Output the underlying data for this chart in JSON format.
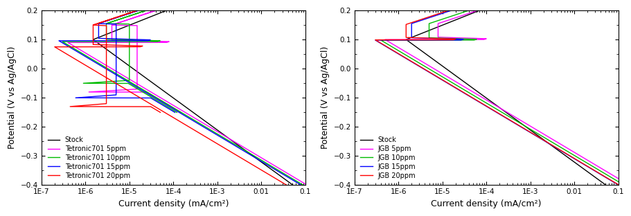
{
  "xlim": [
    1e-07,
    0.1
  ],
  "ylim": [
    -0.4,
    0.2
  ],
  "xlabel": "Current density (mA/cm²)",
  "ylabel": "Potential (V vs Ag/AgCl)",
  "yticks": [
    0.2,
    0.1,
    0.0,
    -0.1,
    -0.2,
    -0.3,
    -0.4
  ],
  "xticks": [
    1e-07,
    1e-06,
    1e-05,
    0.0001,
    0.001,
    0.01,
    0.1
  ],
  "xticklabels": [
    "1E-7",
    "1E-6",
    "1E-5",
    "1E-4",
    "1E-3",
    "0.01",
    "0.1"
  ],
  "colors": {
    "stock": "#000000",
    "5ppm": "#FF00FF",
    "10ppm": "#00BB00",
    "15ppm": "#0000FF",
    "20ppm": "#FF0000"
  },
  "legend1": [
    "Stock",
    "Tetronic701 5ppm",
    "Tetronic701 10ppm",
    "Tetronic701 15ppm",
    "Tetronic701 20ppm"
  ],
  "legend2": [
    "Stock",
    "JGB 5ppm",
    "JGB 10ppm",
    "JGB 15ppm",
    "JGB 20ppm"
  ],
  "bg_color": "#ffffff",
  "linewidth": 1.0,
  "fontsize_label": 9,
  "fontsize_tick": 7.5,
  "fontsize_legend": 7
}
